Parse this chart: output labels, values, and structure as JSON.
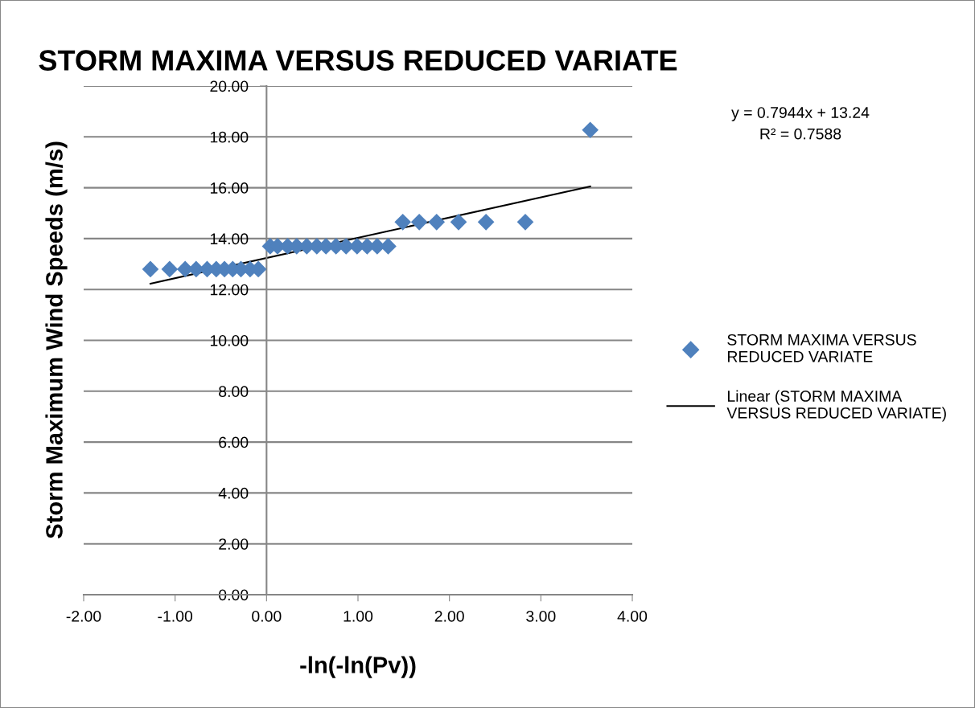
{
  "chart_data": {
    "type": "scatter",
    "title": "STORM MAXIMA VERSUS REDUCED VARIATE",
    "xlabel": "-ln(-ln(Pv))",
    "ylabel": "Storm Maximum Wind Speeds (m/s)",
    "series": [
      {
        "name": "STORM MAXIMA VERSUS REDUCED VARIATE",
        "color": "#4f81bd",
        "marker": "diamond",
        "x": [
          -1.27,
          -1.06,
          -0.89,
          -0.77,
          -0.65,
          -0.55,
          -0.46,
          -0.37,
          -0.28,
          -0.18,
          -0.09,
          0.04,
          0.12,
          0.23,
          0.33,
          0.44,
          0.55,
          0.65,
          0.76,
          0.87,
          0.99,
          1.1,
          1.21,
          1.33,
          1.49,
          1.67,
          1.86,
          2.1,
          2.4,
          2.83,
          3.54
        ],
        "values": [
          12.8,
          12.8,
          12.8,
          12.8,
          12.8,
          12.8,
          12.8,
          12.8,
          12.8,
          12.8,
          12.8,
          13.7,
          13.7,
          13.7,
          13.7,
          13.7,
          13.7,
          13.7,
          13.7,
          13.7,
          13.7,
          13.7,
          13.7,
          13.7,
          14.65,
          14.65,
          14.65,
          14.65,
          14.65,
          14.65,
          18.27
        ]
      },
      {
        "name": "Linear (STORM MAXIMA VERSUS REDUCED VARIATE)",
        "type": "line",
        "color": "#000000",
        "line_style": "solid",
        "x": [
          -1.27,
          3.54
        ],
        "values": [
          12.23,
          16.05
        ]
      }
    ],
    "annotations": [
      "y = 0.7944x + 13.24\nR² = 0.7588"
    ],
    "xlim": [
      -2,
      4
    ],
    "xticks": [
      {
        "value": -2,
        "label": "-2.00"
      },
      {
        "value": -1,
        "label": "-1.00"
      },
      {
        "value": 0,
        "label": "0.00"
      },
      {
        "value": 1,
        "label": "1.00"
      },
      {
        "value": 2,
        "label": "2.00"
      },
      {
        "value": 3,
        "label": "3.00"
      },
      {
        "value": 4,
        "label": "4.00"
      }
    ],
    "ylim": [
      0,
      20
    ],
    "yticks": [
      {
        "value": 0,
        "label": "0.00"
      },
      {
        "value": 2,
        "label": "2.00"
      },
      {
        "value": 4,
        "label": "4.00"
      },
      {
        "value": 6,
        "label": "6.00"
      },
      {
        "value": 8,
        "label": "8.00"
      },
      {
        "value": 10,
        "label": "10.00"
      },
      {
        "value": 12,
        "label": "12.00"
      },
      {
        "value": 14,
        "label": "14.00"
      },
      {
        "value": 16,
        "label": "16.00"
      },
      {
        "value": 18,
        "label": "18.00"
      },
      {
        "value": 20,
        "label": "20.00"
      }
    ],
    "grid": "y",
    "legend": "right"
  }
}
